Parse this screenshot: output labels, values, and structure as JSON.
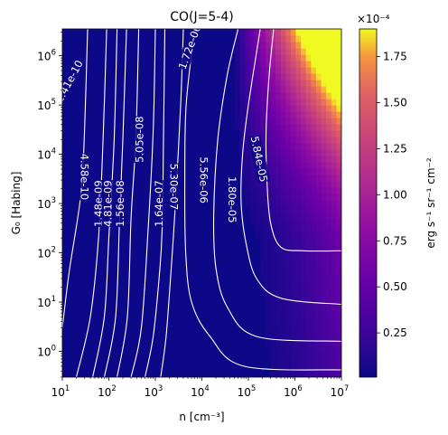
{
  "chart_data": {
    "type": "heatmap",
    "title": "CO(J=5-4)",
    "xlabel": "n [cm⁻³]",
    "ylabel": "G₀ [Habing]",
    "xscale": "log",
    "yscale": "log",
    "xlim": [
      10,
      10000000
    ],
    "ylim": [
      0.3,
      3500000
    ],
    "x_ticks": [
      {
        "value": 10,
        "base": "10",
        "exp": "1"
      },
      {
        "value": 100,
        "base": "10",
        "exp": "2"
      },
      {
        "value": 1000,
        "base": "10",
        "exp": "3"
      },
      {
        "value": 10000,
        "base": "10",
        "exp": "4"
      },
      {
        "value": 100000,
        "base": "10",
        "exp": "5"
      },
      {
        "value": 1000000,
        "base": "10",
        "exp": "6"
      },
      {
        "value": 10000000,
        "base": "10",
        "exp": "7"
      }
    ],
    "y_ticks": [
      {
        "value": 1,
        "base": "10",
        "exp": "0"
      },
      {
        "value": 10,
        "base": "10",
        "exp": "1"
      },
      {
        "value": 100,
        "base": "10",
        "exp": "2"
      },
      {
        "value": 1000,
        "base": "10",
        "exp": "3"
      },
      {
        "value": 10000,
        "base": "10",
        "exp": "4"
      },
      {
        "value": 100000,
        "base": "10",
        "exp": "5"
      },
      {
        "value": 1000000,
        "base": "10",
        "exp": "6"
      }
    ],
    "colormap": "plasma",
    "colorbar": {
      "label": "erg s⁻¹ sr⁻¹ cm⁻²",
      "multiplier": "×10⁻⁴",
      "range": [
        0.01,
        1.9
      ],
      "ticks": [
        "0.25",
        "0.50",
        "0.75",
        "1.00",
        "1.25",
        "1.50",
        "1.75"
      ]
    },
    "contour_levels": [
      {
        "label": "1.41e-10",
        "at_n": 14,
        "at_g0": 300000,
        "angle": -62
      },
      {
        "label": "4.58e-10",
        "at_n": 30,
        "at_g0": 3500,
        "angle": 90
      },
      {
        "label": "1.48e-09",
        "at_n": 60,
        "at_g0": 1000,
        "angle": -90
      },
      {
        "label": "4.81e-09",
        "at_n": 95,
        "at_g0": 1000,
        "angle": -90
      },
      {
        "label": "1.56e-08",
        "at_n": 175,
        "at_g0": 1000,
        "angle": -90
      },
      {
        "label": "5.05e-08",
        "at_n": 460,
        "at_g0": 20000,
        "angle": -90
      },
      {
        "label": "1.64e-07",
        "at_n": 1200,
        "at_g0": 1000,
        "angle": -90
      },
      {
        "label": "5.30e-07",
        "at_n": 2500,
        "at_g0": 2200,
        "angle": 90
      },
      {
        "label": "1.72e-06",
        "at_n": 5500,
        "at_g0": 1500000,
        "angle": -70
      },
      {
        "label": "5.56e-06",
        "at_n": 11000,
        "at_g0": 3000,
        "angle": 90
      },
      {
        "label": "1.80e-05",
        "at_n": 45000,
        "at_g0": 1200,
        "angle": 90
      },
      {
        "label": "5.84e-05",
        "at_n": 170000,
        "at_g0": 8000,
        "angle": 78
      }
    ]
  }
}
